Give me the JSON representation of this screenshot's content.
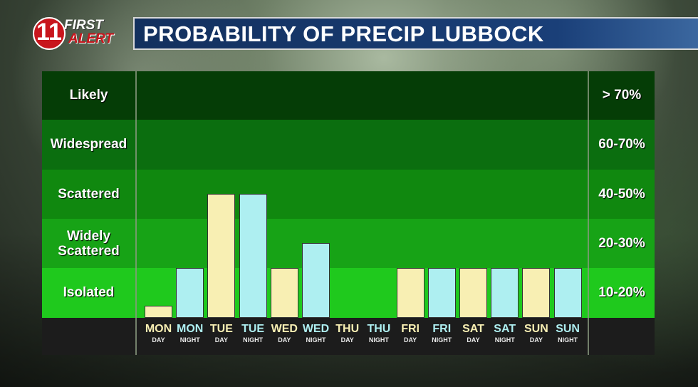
{
  "logo": {
    "number": "11",
    "line1": "FIRST",
    "line2": "ALERT"
  },
  "title": "PROBABILITY OF PRECIP LUBBOCK",
  "colors": {
    "day_bar": "#f8efb3",
    "night_bar": "#aeeff1",
    "bands": [
      "#053d06",
      "#0b6e0f",
      "#10880f",
      "#17a316",
      "#1fc91d"
    ]
  },
  "chart_data": {
    "type": "bar",
    "title": "PROBABILITY OF PRECIP LUBBOCK",
    "ylim": [
      0,
      70
    ],
    "bands": [
      {
        "label": "Likely",
        "range": "> 70%"
      },
      {
        "label": "Widespread",
        "range": "60-70%"
      },
      {
        "label": "Scattered",
        "range": "40-50%"
      },
      {
        "label": "Widely Scattered",
        "range": "20-30%"
      },
      {
        "label": "Isolated",
        "range": "10-20%"
      }
    ],
    "categories": [
      {
        "day": "MON",
        "part": "DAY"
      },
      {
        "day": "MON",
        "part": "NIGHT"
      },
      {
        "day": "TUE",
        "part": "DAY"
      },
      {
        "day": "TUE",
        "part": "NIGHT"
      },
      {
        "day": "WED",
        "part": "DAY"
      },
      {
        "day": "WED",
        "part": "NIGHT"
      },
      {
        "day": "THU",
        "part": "DAY"
      },
      {
        "day": "THU",
        "part": "NIGHT"
      },
      {
        "day": "FRI",
        "part": "DAY"
      },
      {
        "day": "FRI",
        "part": "NIGHT"
      },
      {
        "day": "SAT",
        "part": "DAY"
      },
      {
        "day": "SAT",
        "part": "NIGHT"
      },
      {
        "day": "SUN",
        "part": "DAY"
      },
      {
        "day": "SUN",
        "part": "NIGHT"
      }
    ],
    "values": [
      5,
      20,
      50,
      50,
      20,
      30,
      0,
      0,
      20,
      20,
      20,
      20,
      20,
      20
    ]
  }
}
